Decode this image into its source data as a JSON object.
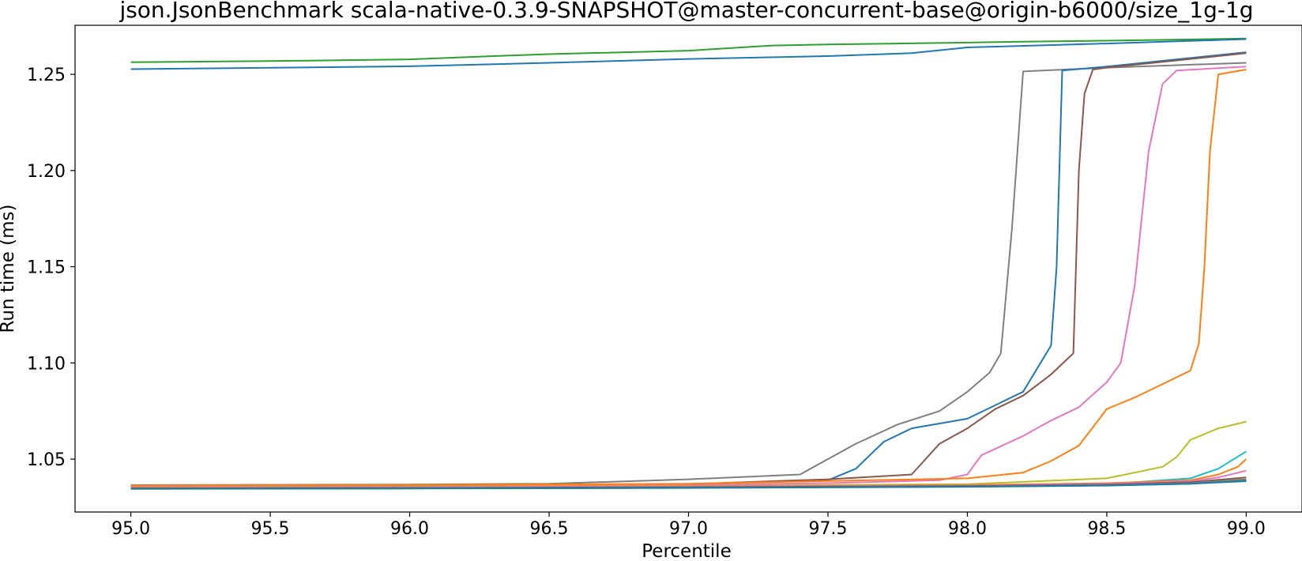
{
  "chart_data": {
    "type": "line",
    "title": "json.JsonBenchmark scala-native-0.3.9-SNAPSHOT@master-concurrent-base@origin-b6000/size_1g-1g",
    "xlabel": "Percentile",
    "ylabel": "Run time (ms)",
    "xlim": [
      94.8,
      99.2
    ],
    "ylim": [
      1.0225,
      1.2755
    ],
    "x_ticks": [
      95.0,
      95.5,
      96.0,
      96.5,
      97.0,
      97.5,
      98.0,
      98.5,
      99.0
    ],
    "x_tick_labels": [
      "95.0",
      "95.5",
      "96.0",
      "96.5",
      "97.0",
      "97.5",
      "98.0",
      "98.5",
      "99.0"
    ],
    "y_ticks": [
      1.05,
      1.1,
      1.15,
      1.2,
      1.25
    ],
    "y_tick_labels": [
      "1.05",
      "1.10",
      "1.15",
      "1.20",
      "1.25"
    ],
    "grid": false,
    "legend": "none",
    "series": [
      {
        "color": "#2ca02c",
        "x": [
          95.0,
          95.5,
          96.0,
          96.3,
          96.5,
          97.0,
          97.3,
          97.5,
          98.0,
          98.2,
          98.5,
          99.0
        ],
        "values": [
          1.2563,
          1.2569,
          1.2578,
          1.2595,
          1.2605,
          1.2623,
          1.265,
          1.2655,
          1.2665,
          1.267,
          1.2675,
          1.2686
        ]
      },
      {
        "color": "#1f77b4",
        "x": [
          95.0,
          95.5,
          96.0,
          96.5,
          97.0,
          97.5,
          97.8,
          98.0,
          98.5,
          99.0
        ],
        "values": [
          1.2527,
          1.2534,
          1.2542,
          1.256,
          1.258,
          1.2595,
          1.261,
          1.264,
          1.266,
          1.2683
        ]
      },
      {
        "color": "#7f7f7f",
        "x": [
          95.0,
          96.0,
          96.5,
          97.0,
          97.4,
          97.5,
          97.6,
          97.75,
          97.9,
          98.0,
          98.08,
          98.12,
          98.16,
          98.2,
          98.5,
          99.0
        ],
        "values": [
          1.0365,
          1.0368,
          1.0372,
          1.0395,
          1.042,
          1.05,
          1.058,
          1.068,
          1.075,
          1.085,
          1.095,
          1.105,
          1.17,
          1.2515,
          1.2535,
          1.256
        ]
      },
      {
        "color": "#1f77b4",
        "x": [
          95.0,
          96.0,
          97.0,
          97.5,
          97.6,
          97.7,
          97.8,
          98.0,
          98.2,
          98.3,
          98.32,
          98.34,
          98.5,
          99.0
        ],
        "values": [
          1.0355,
          1.036,
          1.037,
          1.039,
          1.045,
          1.059,
          1.066,
          1.071,
          1.085,
          1.109,
          1.15,
          1.252,
          1.254,
          1.2615
        ]
      },
      {
        "color": "#8c564b",
        "x": [
          95.0,
          96.0,
          97.0,
          97.5,
          97.8,
          97.9,
          98.0,
          98.1,
          98.2,
          98.3,
          98.38,
          98.4,
          98.42,
          98.45,
          98.5,
          99.0
        ],
        "values": [
          1.036,
          1.0362,
          1.037,
          1.0395,
          1.042,
          1.058,
          1.066,
          1.076,
          1.083,
          1.094,
          1.105,
          1.2,
          1.24,
          1.2525,
          1.2535,
          1.261
        ]
      },
      {
        "color": "#e377c2",
        "x": [
          95.0,
          96.0,
          97.0,
          97.5,
          97.9,
          98.0,
          98.05,
          98.2,
          98.3,
          98.4,
          98.5,
          98.55,
          98.6,
          98.65,
          98.7,
          98.75,
          99.0
        ],
        "values": [
          1.0357,
          1.036,
          1.0365,
          1.0375,
          1.039,
          1.042,
          1.052,
          1.062,
          1.07,
          1.077,
          1.09,
          1.1,
          1.14,
          1.21,
          1.245,
          1.252,
          1.254
        ]
      },
      {
        "color": "#ff7f0e",
        "x": [
          95.0,
          96.0,
          97.0,
          98.0,
          98.2,
          98.3,
          98.4,
          98.5,
          98.6,
          98.7,
          98.8,
          98.83,
          98.85,
          98.87,
          98.9,
          99.0
        ],
        "values": [
          1.0362,
          1.0365,
          1.0372,
          1.04,
          1.043,
          1.049,
          1.057,
          1.076,
          1.082,
          1.089,
          1.096,
          1.11,
          1.15,
          1.21,
          1.25,
          1.2525
        ]
      },
      {
        "color": "#bcbd22",
        "x": [
          95.0,
          96.0,
          97.0,
          98.0,
          98.5,
          98.7,
          98.75,
          98.8,
          98.9,
          99.0
        ],
        "values": [
          1.0352,
          1.0355,
          1.036,
          1.037,
          1.04,
          1.046,
          1.051,
          1.06,
          1.066,
          1.0695
        ]
      },
      {
        "color": "#17becf",
        "x": [
          95.0,
          96.0,
          97.0,
          98.0,
          98.5,
          98.8,
          98.9,
          99.0
        ],
        "values": [
          1.035,
          1.0352,
          1.0355,
          1.036,
          1.037,
          1.04,
          1.045,
          1.054
        ]
      },
      {
        "color": "#ff7f0e",
        "x": [
          95.0,
          96.0,
          97.0,
          98.0,
          98.5,
          98.8,
          98.9,
          98.97,
          99.0
        ],
        "values": [
          1.0352,
          1.0354,
          1.0358,
          1.0365,
          1.0375,
          1.039,
          1.042,
          1.046,
          1.05
        ]
      },
      {
        "color": "#e377c2",
        "x": [
          95.0,
          96.0,
          97.0,
          98.0,
          98.5,
          98.8,
          98.9,
          99.0
        ],
        "values": [
          1.035,
          1.0352,
          1.0356,
          1.0362,
          1.0372,
          1.0385,
          1.0405,
          1.044
        ]
      },
      {
        "color": "#8c564b",
        "x": [
          95.0,
          96.0,
          97.0,
          98.0,
          98.5,
          98.8,
          99.0
        ],
        "values": [
          1.0348,
          1.035,
          1.0354,
          1.036,
          1.0368,
          1.038,
          1.0405
        ]
      },
      {
        "color": "#7f7f7f",
        "x": [
          95.0,
          96.0,
          97.0,
          98.0,
          98.5,
          98.8,
          99.0
        ],
        "values": [
          1.0346,
          1.0348,
          1.0352,
          1.0358,
          1.0365,
          1.0375,
          1.0395
        ]
      },
      {
        "color": "#2ca02c",
        "x": [
          95.0,
          96.0,
          97.0,
          98.0,
          98.5,
          98.8,
          99.0
        ],
        "values": [
          1.0345,
          1.0347,
          1.035,
          1.0356,
          1.0362,
          1.0372,
          1.0388
        ]
      },
      {
        "color": "#1f77b4",
        "x": [
          95.0,
          96.0,
          97.0,
          98.0,
          98.5,
          98.8,
          99.0
        ],
        "values": [
          1.0347,
          1.0349,
          1.0352,
          1.0357,
          1.0363,
          1.0372,
          1.0385
        ]
      }
    ]
  }
}
